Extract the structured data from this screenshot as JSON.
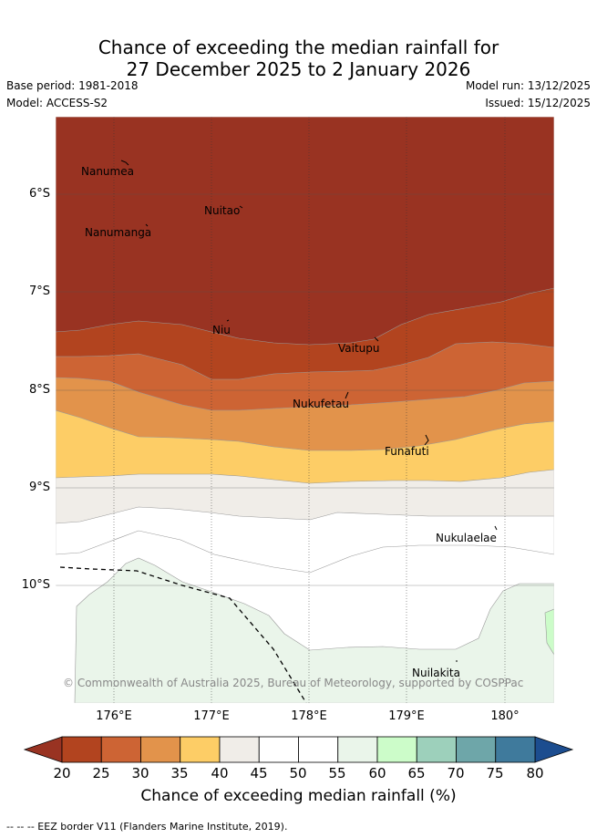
{
  "title_line1": "Chance of exceeding the median rainfall for",
  "title_line2": "27 December 2025 to 2 January 2026",
  "base_period": "Base period: 1981-2018",
  "model": "Model: ACCESS-S2",
  "model_run": "Model run: 13/12/2025",
  "issued": "Issued: 15/12/2025",
  "latitude_labels": [
    "6°S",
    "7°S",
    "8°S",
    "9°S",
    "10°S"
  ],
  "longitude_labels": [
    "176°E",
    "177°E",
    "178°E",
    "179°E",
    "180°"
  ],
  "places": [
    {
      "name": "Nanumea"
    },
    {
      "name": "Nuitao"
    },
    {
      "name": "Nanumanga"
    },
    {
      "name": "Niu"
    },
    {
      "name": "Vaitupu"
    },
    {
      "name": "Nukufetau"
    },
    {
      "name": "Funafuti"
    },
    {
      "name": "Nukulaelae"
    },
    {
      "name": "Nuilakita"
    }
  ],
  "copyright": "© Commonwealth of Australia 2025, Bureau of Meteorology, supported by COSPPac",
  "colorbar": {
    "ticks": [
      "20",
      "25",
      "30",
      "35",
      "40",
      "45",
      "50",
      "55",
      "60",
      "65",
      "70",
      "75",
      "80"
    ],
    "colors": [
      "#b2441f",
      "#cd6434",
      "#e2934b",
      "#fdcd66",
      "#f0ede8",
      "#ffffff",
      "#ffffff",
      "#eaf5ea",
      "#ccfcc9",
      "#9dd0bb",
      "#6ea6a9",
      "#3f7a9c"
    ],
    "under_color": "#993322",
    "over_color": "#1c4d8f",
    "title": "Chance of exceeding median rainfall (%)"
  },
  "footer": "-- -- -- EEZ border V11 (Flanders Marine Institute, 2019)."
}
